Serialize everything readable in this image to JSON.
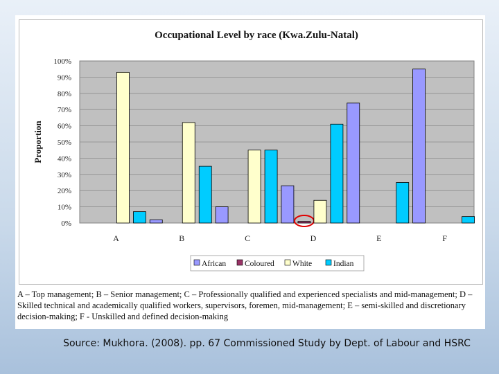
{
  "chart_data": {
    "type": "bar",
    "title": "Occupational Level by race (Kwa.Zulu-Natal)",
    "xlabel": "",
    "ylabel": "Proportion",
    "categories": [
      "A",
      "B",
      "C",
      "D",
      "E",
      "F"
    ],
    "ylim": [
      0,
      100
    ],
    "yticks": [
      "0%",
      "10%",
      "20%",
      "30%",
      "40%",
      "50%",
      "60%",
      "70%",
      "80%",
      "90%",
      "100%"
    ],
    "grid": true,
    "legend_position": "bottom",
    "series": [
      {
        "name": "African",
        "color": "#9999ff",
        "values": [
          0,
          2,
          10,
          23,
          74,
          95
        ]
      },
      {
        "name": "Coloured",
        "color": "#993366",
        "values": [
          0,
          0,
          0,
          1,
          0,
          0
        ]
      },
      {
        "name": "White",
        "color": "#ffffcc",
        "values": [
          93,
          62,
          45,
          14,
          0,
          0
        ]
      },
      {
        "name": "Indian",
        "color": "#00ccff",
        "values": [
          7,
          35,
          45,
          61,
          25,
          4
        ]
      }
    ],
    "annotation": {
      "type": "circle-highlight",
      "category": "D",
      "series": "Coloured",
      "color": "#e00000"
    }
  },
  "footnote": "A – Top management;  B – Senior management;  C – Professionally qualified and experienced specialists and mid-management; D – Skilled technical and academically qualified workers, supervisors, foremen, mid-management;  E – semi-skilled and discretionary decision-making;  F - Unskilled and defined decision-making",
  "source": "Source: Mukhora. (2008). pp. 67 Commissioned Study by Dept. of Labour and HSRC"
}
